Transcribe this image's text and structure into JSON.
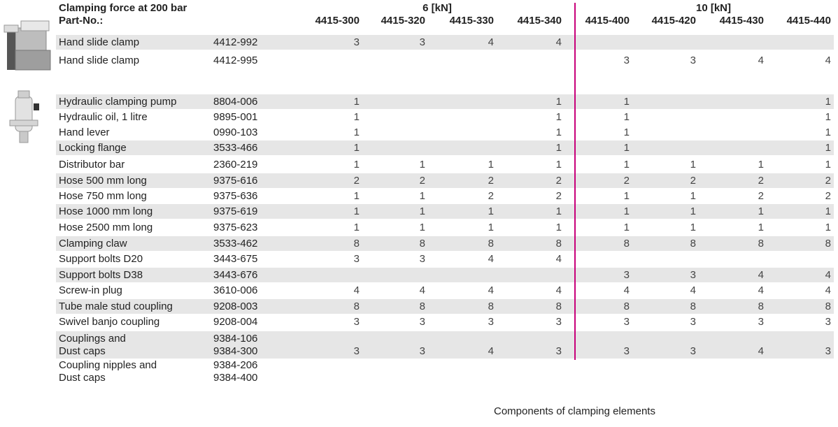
{
  "header": {
    "title": "Clamping force at 200 bar",
    "part_label": "Part-No.:",
    "groups": [
      "6 [kN]",
      "10 [kN]"
    ],
    "columns": [
      "4415-300",
      "4415-320",
      "4415-330",
      "4415-340",
      "4415-400",
      "4415-420",
      "4415-430",
      "4415-440"
    ]
  },
  "rows": [
    {
      "name": [
        "Hand slide clamp"
      ],
      "part": [
        "4412-992"
      ],
      "values": [
        3,
        3,
        4,
        4,
        null,
        null,
        null,
        null
      ]
    },
    {
      "name": [
        "Hand slide clamp"
      ],
      "part": [
        "4412-995"
      ],
      "values": [
        null,
        null,
        null,
        null,
        3,
        3,
        4,
        4
      ]
    },
    {
      "name": [
        "Hydraulic clamping pump"
      ],
      "part": [
        "8804-006"
      ],
      "values": [
        1,
        null,
        null,
        1,
        1,
        null,
        null,
        1
      ]
    },
    {
      "name": [
        "Hydraulic oil, 1 litre"
      ],
      "part": [
        "9895-001"
      ],
      "values": [
        1,
        null,
        null,
        1,
        1,
        null,
        null,
        1
      ]
    },
    {
      "name": [
        "Hand lever"
      ],
      "part": [
        "0990-103"
      ],
      "values": [
        1,
        null,
        null,
        1,
        1,
        null,
        null,
        1
      ]
    },
    {
      "name": [
        "Locking flange"
      ],
      "part": [
        "3533-466"
      ],
      "values": [
        1,
        null,
        null,
        1,
        1,
        null,
        null,
        1
      ]
    },
    {
      "name": [
        "Distributor bar"
      ],
      "part": [
        "2360-219"
      ],
      "values": [
        1,
        1,
        1,
        1,
        1,
        1,
        1,
        1
      ]
    },
    {
      "name": [
        "Hose 500 mm long"
      ],
      "part": [
        "9375-616"
      ],
      "values": [
        2,
        2,
        2,
        2,
        2,
        2,
        2,
        2
      ]
    },
    {
      "name": [
        "Hose 750 mm long"
      ],
      "part": [
        "9375-636"
      ],
      "values": [
        1,
        1,
        2,
        2,
        1,
        1,
        2,
        2
      ]
    },
    {
      "name": [
        "Hose 1000 mm long"
      ],
      "part": [
        "9375-619"
      ],
      "values": [
        1,
        1,
        1,
        1,
        1,
        1,
        1,
        1
      ]
    },
    {
      "name": [
        "Hose 2500 mm long"
      ],
      "part": [
        "9375-623"
      ],
      "values": [
        1,
        1,
        1,
        1,
        1,
        1,
        1,
        1
      ]
    },
    {
      "name": [
        "Clamping claw"
      ],
      "part": [
        "3533-462"
      ],
      "values": [
        8,
        8,
        8,
        8,
        8,
        8,
        8,
        8
      ]
    },
    {
      "name": [
        "Support bolts D20"
      ],
      "part": [
        "3443-675"
      ],
      "values": [
        3,
        3,
        4,
        4,
        null,
        null,
        null,
        null
      ]
    },
    {
      "name": [
        "Support bolts D38"
      ],
      "part": [
        "3443-676"
      ],
      "values": [
        null,
        null,
        null,
        null,
        3,
        3,
        4,
        4
      ]
    },
    {
      "name": [
        "Screw-in plug"
      ],
      "part": [
        "3610-006"
      ],
      "values": [
        4,
        4,
        4,
        4,
        4,
        4,
        4,
        4
      ]
    },
    {
      "name": [
        "Tube male stud coupling"
      ],
      "part": [
        "9208-003"
      ],
      "values": [
        8,
        8,
        8,
        8,
        8,
        8,
        8,
        8
      ]
    },
    {
      "name": [
        "Swivel banjo coupling"
      ],
      "part": [
        "9208-004"
      ],
      "values": [
        3,
        3,
        3,
        3,
        3,
        3,
        3,
        3
      ]
    },
    {
      "name": [
        "Couplings and",
        "Dust caps"
      ],
      "part": [
        "9384-106",
        "9384-300"
      ],
      "values": [
        3,
        3,
        4,
        3,
        3,
        3,
        4,
        3
      ]
    },
    {
      "name": [
        "Coupling nipples and",
        "Dust caps"
      ],
      "part": [
        "9384-206",
        "9384-400"
      ],
      "values": [
        null,
        null,
        null,
        null,
        null,
        null,
        null,
        null
      ]
    }
  ],
  "caption": "Components of clamping elements"
}
